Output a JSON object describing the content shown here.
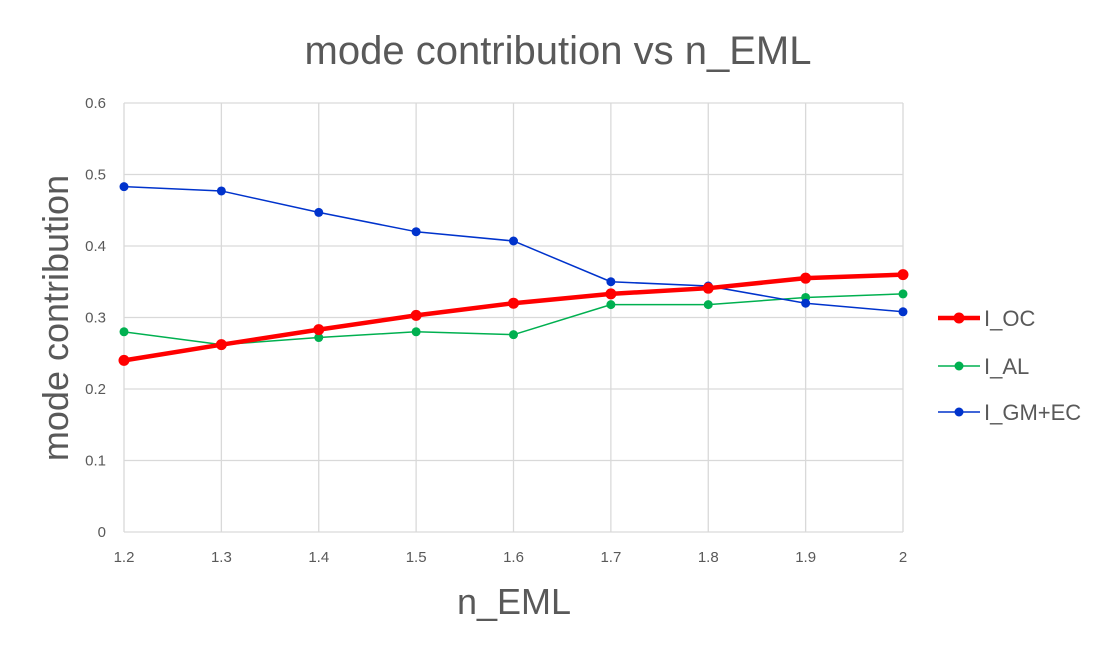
{
  "chart_data": {
    "type": "line",
    "title": "mode contribution vs n_EML",
    "xlabel": "n_EML",
    "ylabel": "mode contribution",
    "x": [
      1.2,
      1.3,
      1.4,
      1.5,
      1.6,
      1.7,
      1.8,
      1.9,
      2
    ],
    "x_tick_labels": [
      "1.2",
      "1.3",
      "1.4",
      "1.5",
      "1.6",
      "1.7",
      "1.8",
      "1.9",
      "2"
    ],
    "y_tick_labels": [
      "0",
      "0.1",
      "0.2",
      "0.3",
      "0.4",
      "0.5",
      "0.6"
    ],
    "xlim": [
      1.2,
      2
    ],
    "ylim": [
      0,
      0.6
    ],
    "grid": true,
    "legend_position": "right",
    "series": [
      {
        "name": "I_OC",
        "color": "#ff0000",
        "values": [
          0.24,
          0.262,
          0.283,
          0.303,
          0.32,
          0.333,
          0.341,
          0.355,
          0.36
        ]
      },
      {
        "name": "I_AL",
        "color": "#00b050",
        "values": [
          0.28,
          0.262,
          0.272,
          0.28,
          0.276,
          0.318,
          0.318,
          0.328,
          0.333
        ]
      },
      {
        "name": "I_GM+EC",
        "color": "#0033cc",
        "values": [
          0.483,
          0.477,
          0.447,
          0.42,
          0.407,
          0.35,
          0.344,
          0.32,
          0.308
        ]
      }
    ]
  }
}
